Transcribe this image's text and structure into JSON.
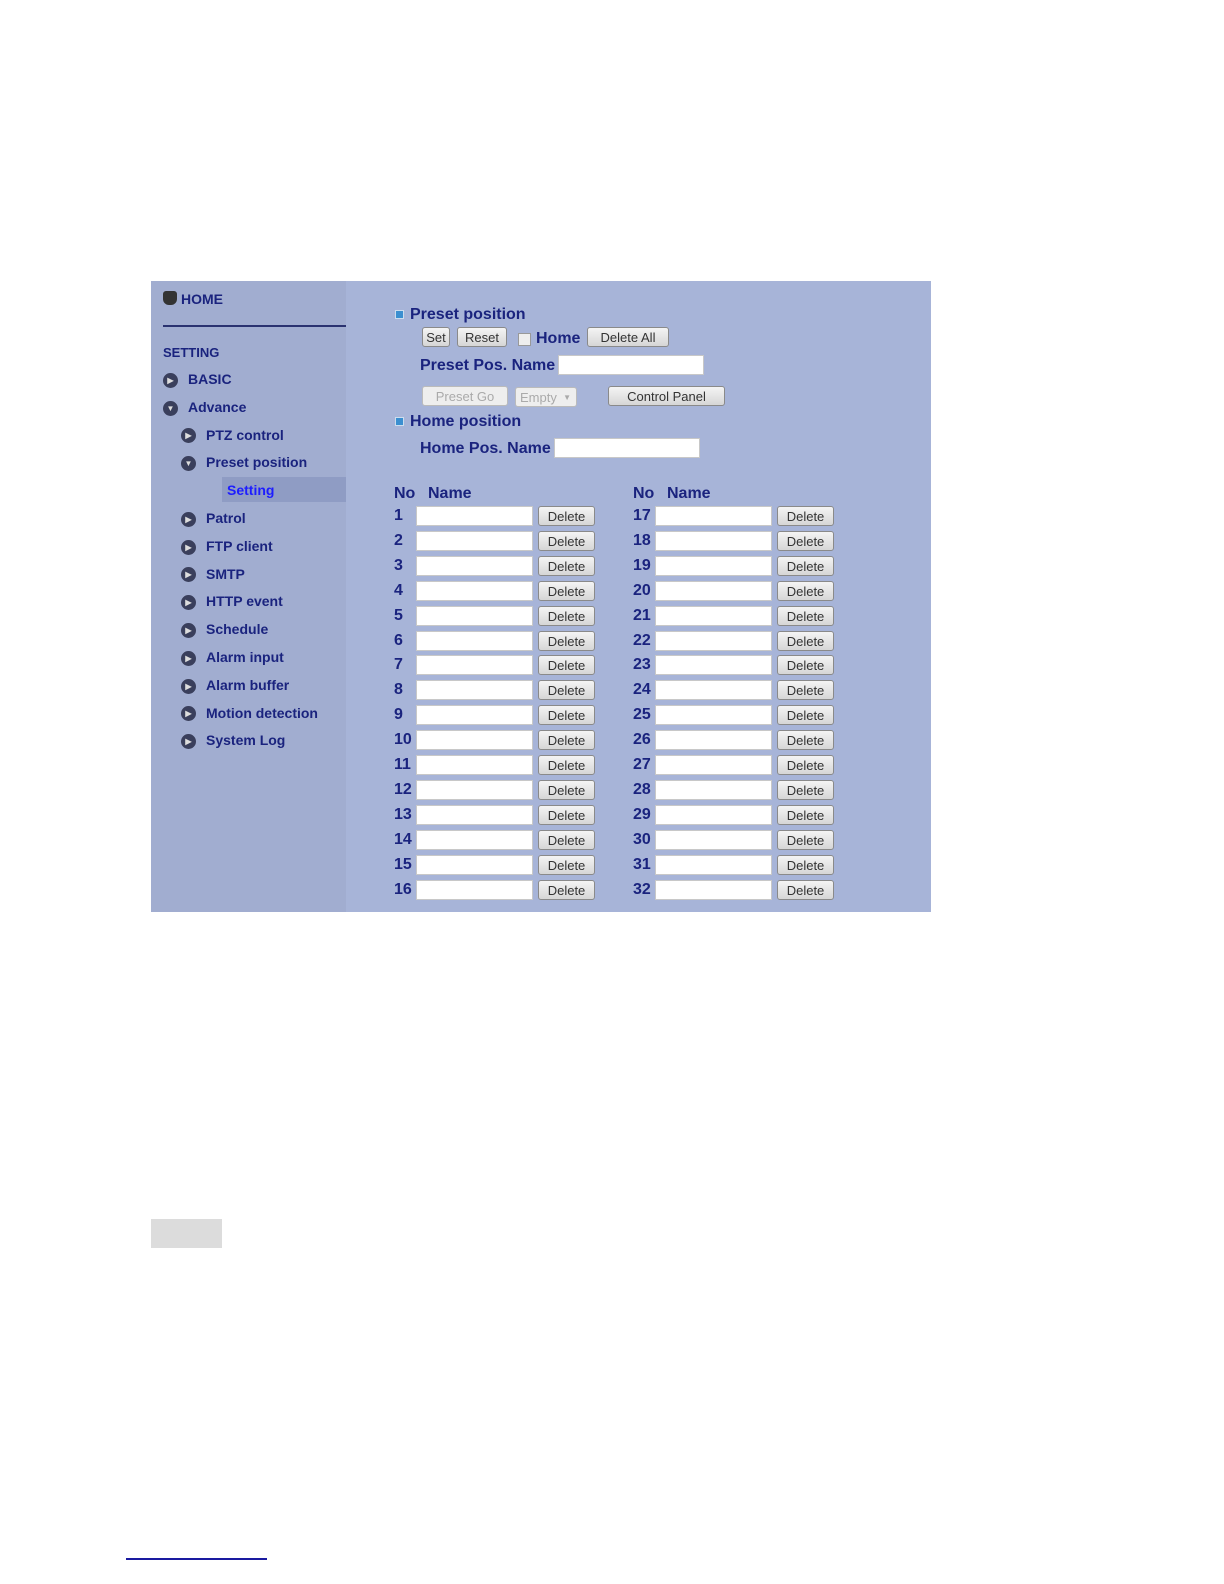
{
  "sidebar": {
    "home": "HOME",
    "setting": "SETTING",
    "items": [
      {
        "label": "BASIC",
        "expanded": false
      },
      {
        "label": "Advance",
        "expanded": true
      },
      {
        "label": "PTZ control",
        "expanded": false
      },
      {
        "label": "Preset position",
        "expanded": true
      },
      {
        "label": "Setting",
        "selected": true
      },
      {
        "label": "Patrol",
        "expanded": false
      },
      {
        "label": "FTP client",
        "expanded": false
      },
      {
        "label": "SMTP",
        "expanded": false
      },
      {
        "label": "HTTP event",
        "expanded": false
      },
      {
        "label": "Schedule",
        "expanded": false
      },
      {
        "label": "Alarm input",
        "expanded": false
      },
      {
        "label": "Alarm buffer",
        "expanded": false
      },
      {
        "label": "Motion detection",
        "expanded": false
      },
      {
        "label": "System Log",
        "expanded": false
      }
    ]
  },
  "preset": {
    "title": "Preset position",
    "set": "Set",
    "reset": "Reset",
    "home_label": "Home",
    "home_checked": false,
    "delete_all": "Delete All",
    "name_label": "Preset Pos. Name",
    "name_value": "",
    "preset_go": "Preset Go",
    "select_value": "Empty",
    "control_panel": "Control Panel"
  },
  "home": {
    "title": "Home position",
    "name_label": "Home Pos. Name",
    "name_value": ""
  },
  "table": {
    "col_no": "No",
    "col_name": "Name",
    "delete_label": "Delete",
    "rows": [
      1,
      2,
      3,
      4,
      5,
      6,
      7,
      8,
      9,
      10,
      11,
      12,
      13,
      14,
      15,
      16,
      17,
      18,
      19,
      20,
      21,
      22,
      23,
      24,
      25,
      26,
      27,
      28,
      29,
      30,
      31,
      32
    ]
  },
  "colors": {
    "sidebar": "#a1add0",
    "main": "#a7b4d8",
    "text": "#1a237e",
    "selected": "#1d1dff"
  }
}
